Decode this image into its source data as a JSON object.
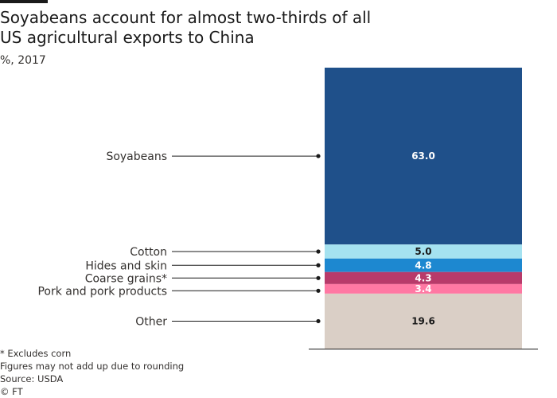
{
  "title": "Soyabeans account for almost two-thirds of all US agricultural exports to China",
  "subtitle": "%, 2017",
  "footnotes": {
    "note": "* Excludes corn",
    "rounding": "Figures may not add up due to rounding",
    "source": "Source: USDA",
    "credit": "© FT"
  },
  "chart_data": {
    "type": "bar",
    "stacked": true,
    "title": "Soyabeans account for almost two-thirds of all US agricultural exports to China",
    "subtitle": "%, 2017",
    "unit": "%",
    "year": 2017,
    "segments": [
      {
        "label": "Soyabeans",
        "value": 63.0,
        "display": "63.0",
        "color": "#1f508a",
        "text_color": "#ffffff"
      },
      {
        "label": "Cotton",
        "value": 5.0,
        "display": "5.0",
        "color": "#a5e2f0",
        "text_color": "#1a1a1a"
      },
      {
        "label": "Hides and skin",
        "value": 4.8,
        "display": "4.8",
        "color": "#1d88d0",
        "text_color": "#ffffff"
      },
      {
        "label": "Coarse grains*",
        "value": 4.3,
        "display": "4.3",
        "color": "#b83a6a",
        "text_color": "#ffffff"
      },
      {
        "label": "Pork and pork products",
        "value": 3.4,
        "display": "3.4",
        "color": "#ff78a3",
        "text_color": "#ffffff"
      },
      {
        "label": "Other",
        "value": 19.6,
        "display": "19.6",
        "color": "#dacfc6",
        "text_color": "#1a1a1a"
      }
    ],
    "accent_colors": {
      "leader": "#1a1a1a",
      "baseline": "#1a1a1a"
    }
  }
}
